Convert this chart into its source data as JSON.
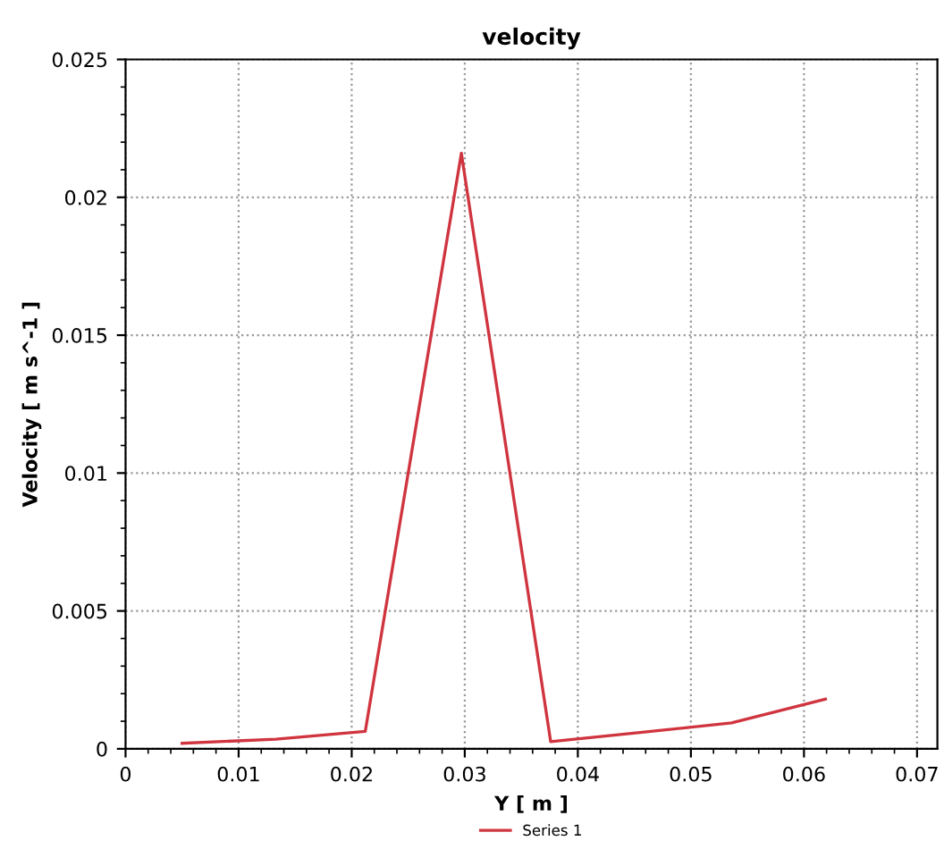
{
  "chart_data": {
    "type": "line",
    "title": "velocity",
    "xlabel": "Y [ m ]",
    "ylabel": "Velocity [ m s^-1 ]",
    "x": [
      0.005,
      0.0133,
      0.0212,
      0.0297,
      0.0376,
      0.0457,
      0.0536,
      0.0619
    ],
    "series": [
      {
        "name": "Series 1",
        "color": "#d0343f",
        "values": [
          0.0002,
          0.00035,
          0.00063,
          0.0216,
          0.00026,
          0.0006,
          0.00094,
          0.0018
        ]
      }
    ],
    "xlim": [
      0,
      0.0718
    ],
    "xticks": [
      0,
      0.01,
      0.02,
      0.03,
      0.04,
      0.05,
      0.06,
      0.07
    ],
    "ylim": [
      0,
      0.025
    ],
    "yticks": [
      0,
      0.005,
      0.01,
      0.015,
      0.02,
      0.025
    ],
    "grid": true,
    "legend": "bottom",
    "marker": "none",
    "line_style": "solid"
  }
}
